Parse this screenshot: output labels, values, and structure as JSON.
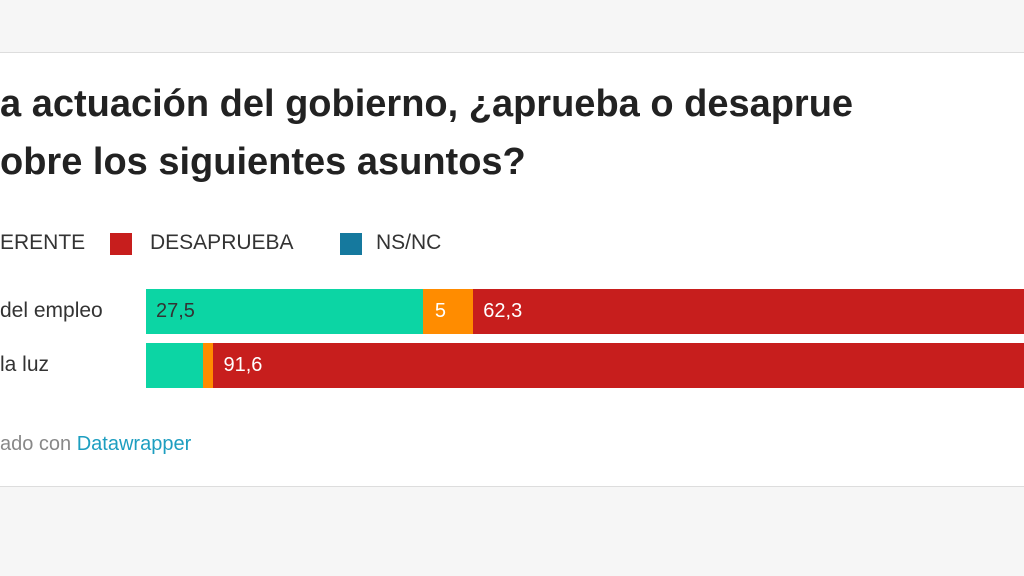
{
  "chart_data": {
    "type": "stacked-bar-horizontal",
    "title": [
      "a actuación del gobierno, ¿aprueba o desaprue",
      "obre los siguientes asuntos?"
    ],
    "categories": [
      "del empleo",
      "la luz"
    ],
    "series": [
      {
        "name": null,
        "color": "#0cd5a4",
        "values": [
          27.5,
          5.7
        ],
        "value_labels": [
          "27,5",
          null
        ]
      },
      {
        "name": "ERENTE",
        "color": "#ff8c00",
        "values": [
          5,
          1
        ],
        "value_labels": [
          "5",
          null
        ]
      },
      {
        "name": "DESAPRUEBA",
        "color": "#c71e1d",
        "values": [
          62.3,
          91.6
        ],
        "value_labels": [
          "62,3",
          "91,6"
        ]
      },
      {
        "name": "NS/NC",
        "color": "#15799e",
        "values": [
          null,
          null
        ]
      }
    ],
    "footer": {
      "text": "ado con ",
      "link": "Datawrapper"
    }
  }
}
